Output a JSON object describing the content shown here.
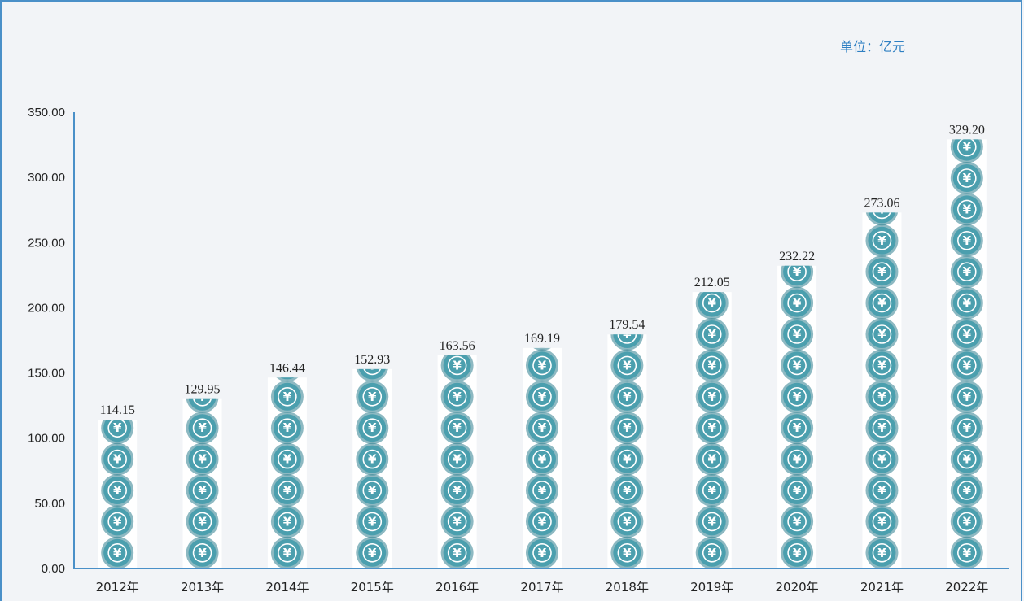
{
  "unit_label": "单位：亿元",
  "colors": {
    "axis": "#4a90c8",
    "coin_fill": "#4b9fae",
    "coin_edge": "#2f7f8f",
    "column_bg": "#ffffff"
  },
  "icon": "yuan-coin-icon",
  "coin_glyph": "¥",
  "chart_data": {
    "type": "bar",
    "categories": [
      "2012年",
      "2013年",
      "2014年",
      "2015年",
      "2016年",
      "2017年",
      "2018年",
      "2019年",
      "2020年",
      "2021年",
      "2022年"
    ],
    "values": [
      114.15,
      129.95,
      146.44,
      152.93,
      163.56,
      169.19,
      179.54,
      212.05,
      232.22,
      273.06,
      329.2
    ],
    "value_labels": [
      "114.15",
      "129.95",
      "146.44",
      "152.93",
      "163.56",
      "169.19",
      "179.54",
      "212.05",
      "232.22",
      "273.06",
      "329.20"
    ],
    "yticks": [
      "0.00",
      "50.00",
      "100.00",
      "150.00",
      "200.00",
      "250.00",
      "300.00",
      "350.00"
    ],
    "ytick_values": [
      0,
      50,
      100,
      150,
      200,
      250,
      300,
      350
    ],
    "ylim": [
      0,
      350
    ],
    "grid": false,
    "title": "",
    "xlabel": "",
    "ylabel": ""
  }
}
